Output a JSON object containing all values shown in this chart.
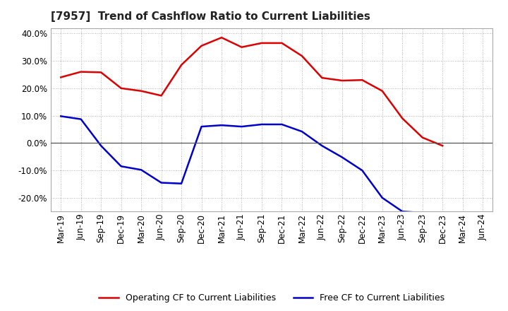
{
  "title": "[7957]  Trend of Cashflow Ratio to Current Liabilities",
  "x_labels": [
    "Mar-19",
    "Jun-19",
    "Sep-19",
    "Dec-19",
    "Mar-20",
    "Jun-20",
    "Sep-20",
    "Dec-20",
    "Mar-21",
    "Jun-21",
    "Sep-21",
    "Dec-21",
    "Mar-22",
    "Jun-22",
    "Sep-22",
    "Dec-22",
    "Mar-23",
    "Jun-23",
    "Sep-23",
    "Dec-23",
    "Mar-24",
    "Jun-24"
  ],
  "operating_cf": [
    0.24,
    0.26,
    0.258,
    0.2,
    0.19,
    0.173,
    0.285,
    0.355,
    0.385,
    0.35,
    0.365,
    0.365,
    0.318,
    0.238,
    0.228,
    0.23,
    0.19,
    0.09,
    0.02,
    -0.01,
    null,
    null
  ],
  "free_cf": [
    0.098,
    0.087,
    -0.01,
    -0.085,
    -0.098,
    -0.145,
    -0.148,
    0.06,
    0.065,
    0.06,
    0.068,
    0.068,
    0.042,
    -0.01,
    -0.052,
    -0.1,
    -0.2,
    -0.25,
    -0.255,
    -0.27,
    null,
    null
  ],
  "operating_color": "#dd0000",
  "free_color": "#0000cc",
  "ylim": [
    -0.25,
    0.42
  ],
  "yticks": [
    -0.2,
    -0.1,
    0.0,
    0.1,
    0.2,
    0.3,
    0.4
  ],
  "background_color": "#ffffff",
  "grid_color": "#999999",
  "legend_op": "Operating CF to Current Liabilities",
  "legend_free": "Free CF to Current Liabilities",
  "title_fontsize": 11,
  "tick_fontsize": 8.5,
  "legend_fontsize": 9
}
